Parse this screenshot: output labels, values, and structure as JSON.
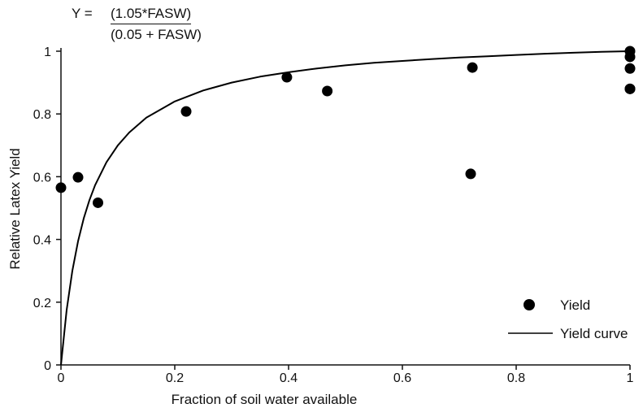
{
  "equation": {
    "lhs": "Y =",
    "numerator": "(1.05*FASW)",
    "denominator": "(0.05 + FASW)"
  },
  "chart_data": {
    "type": "scatter",
    "xlabel": "Fraction of soil water available",
    "ylabel": "Relative Latex Yield",
    "xlim": [
      0,
      1
    ],
    "ylim": [
      0,
      1
    ],
    "xticks": [
      "0",
      "0.2",
      "0.4",
      "0.6",
      "0.8",
      "1"
    ],
    "yticks": [
      "0",
      "0.2",
      "0.4",
      "0.6",
      "0.8",
      "1"
    ],
    "grid": false,
    "legend_position": "bottom-right",
    "series": [
      {
        "name": "Yield",
        "kind": "points",
        "color": "#000000",
        "x": [
          0.0,
          0.03,
          0.065,
          0.22,
          0.397,
          0.468,
          0.72,
          0.723,
          1.0,
          1.0,
          1.0,
          1.0,
          1.0
        ],
        "y": [
          0.565,
          0.598,
          0.517,
          0.808,
          0.917,
          0.873,
          0.609,
          0.948,
          1.0,
          0.982,
          0.945,
          0.88,
          0.88
        ]
      },
      {
        "name": "Yield curve",
        "kind": "line",
        "color": "#000000",
        "x": [
          0.0,
          0.01,
          0.02,
          0.03,
          0.04,
          0.05,
          0.06,
          0.08,
          0.1,
          0.12,
          0.15,
          0.2,
          0.25,
          0.3,
          0.35,
          0.4,
          0.45,
          0.5,
          0.55,
          0.6,
          0.65,
          0.7,
          0.75,
          0.8,
          0.85,
          0.9,
          0.95,
          1.0
        ],
        "y": [
          0.0,
          0.175,
          0.3,
          0.394,
          0.467,
          0.525,
          0.573,
          0.646,
          0.7,
          0.741,
          0.788,
          0.84,
          0.875,
          0.9,
          0.919,
          0.933,
          0.945,
          0.955,
          0.963,
          0.969,
          0.975,
          0.98,
          0.984,
          0.988,
          0.992,
          0.995,
          0.998,
          1.0
        ]
      }
    ]
  }
}
